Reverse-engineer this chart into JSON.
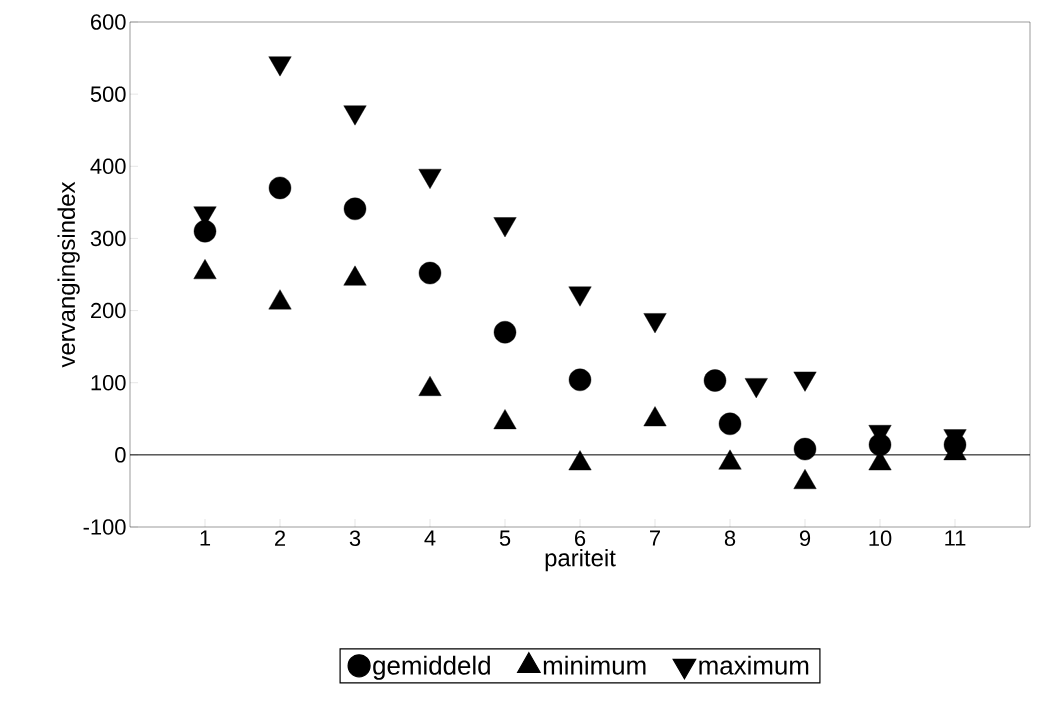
{
  "chart_data": {
    "type": "scatter",
    "xlabel": "pariteit",
    "ylabel": "vervangingsindex",
    "xlim": [
      0,
      12
    ],
    "ylim": [
      -100,
      600
    ],
    "xticks": [
      1,
      2,
      3,
      4,
      5,
      6,
      7,
      8,
      9,
      10,
      11
    ],
    "yticks": [
      -100,
      0,
      100,
      200,
      300,
      400,
      500,
      600
    ],
    "series": [
      {
        "name": "gemiddeld",
        "color": "#000000",
        "marker": "circle",
        "x": [
          1,
          2,
          3,
          4,
          5,
          6,
          7.8,
          8,
          9,
          10,
          11
        ],
        "values": [
          310,
          370,
          341,
          252,
          170,
          104,
          103,
          43,
          8,
          14,
          14
        ]
      },
      {
        "name": "minimum",
        "color": "#000000",
        "marker": "triangle",
        "x": [
          1,
          2,
          3,
          4,
          5,
          6,
          7,
          8,
          9,
          10,
          11
        ],
        "values": [
          253,
          211,
          244,
          91,
          45,
          -12,
          49,
          -11,
          -38,
          -12,
          2
        ]
      },
      {
        "name": "maximum",
        "color": "#000000",
        "marker": "triangle_down",
        "x": [
          1,
          2,
          3,
          4,
          5,
          6,
          7,
          8.35,
          9,
          10,
          11
        ],
        "values": [
          335,
          543,
          475,
          387,
          320,
          224,
          187,
          97,
          106,
          32,
          26
        ]
      }
    ],
    "ref_lines": [
      {
        "axis": "y",
        "value": 0,
        "color": "#000000"
      }
    ],
    "grid": false,
    "legend": "bottom"
  }
}
